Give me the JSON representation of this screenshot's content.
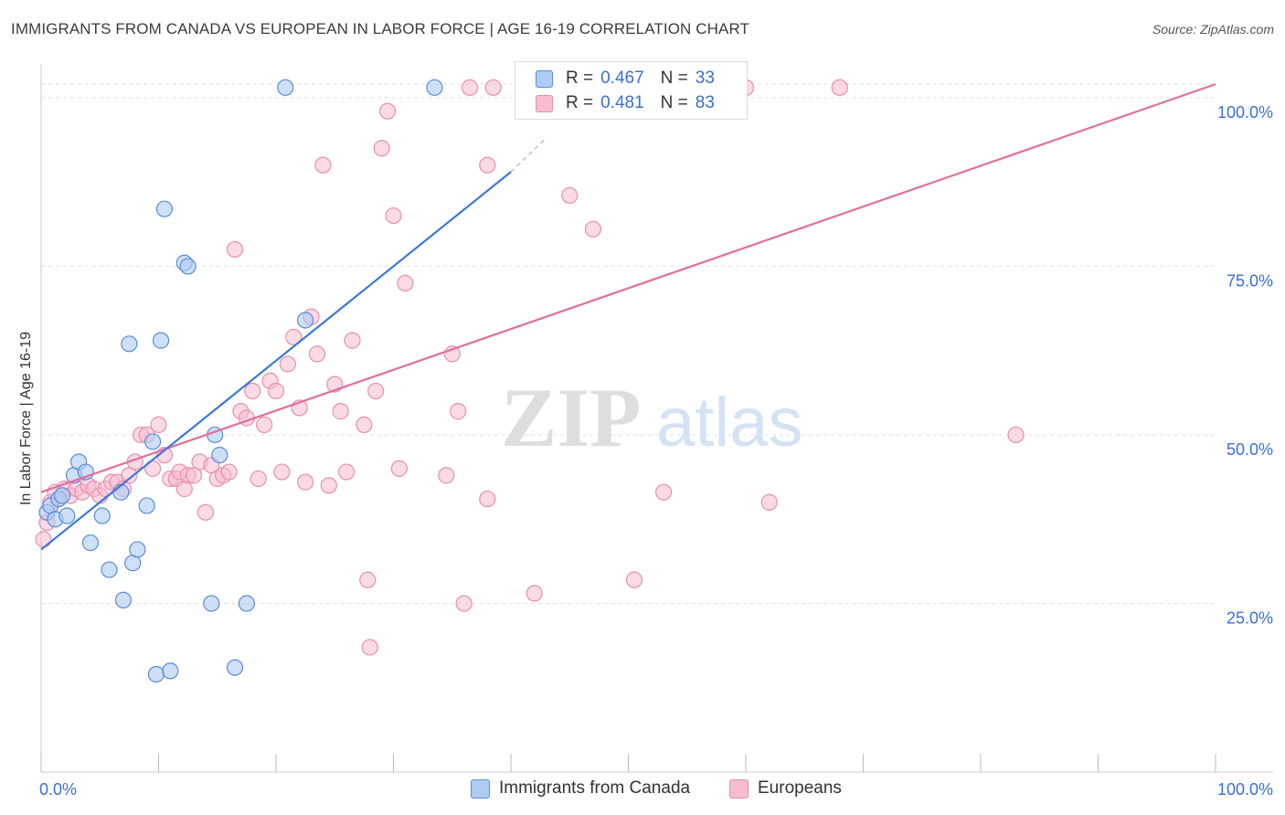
{
  "title": "IMMIGRANTS FROM CANADA VS EUROPEAN IN LABOR FORCE | AGE 16-19 CORRELATION CHART",
  "source": "Source: ZipAtlas.com",
  "watermark": {
    "zip": "ZIP",
    "atlas": "atlas"
  },
  "legend": {
    "rows": [
      {
        "r_label": "R =",
        "r_value": "0.467",
        "n_label": "N =",
        "n_value": "33"
      },
      {
        "r_label": "R =",
        "r_value": "0.481",
        "n_label": "N =",
        "n_value": "83"
      }
    ]
  },
  "chart_data": {
    "type": "scatter",
    "title": "IMMIGRANTS FROM CANADA VS EUROPEAN IN LABOR FORCE | AGE 16-19 CORRELATION CHART",
    "xlabel": "",
    "ylabel": "In Labor Force | Age 16-19",
    "xlim": [
      0,
      100
    ],
    "ylim": [
      0,
      105
    ],
    "x_tick_labels": [
      "0.0%",
      "100.0%"
    ],
    "y_ticks": [
      25,
      50,
      75,
      100
    ],
    "y_tick_labels": [
      "25.0%",
      "50.0%",
      "75.0%",
      "100.0%"
    ],
    "grid": true,
    "colors": {
      "canada_fill": "#aecbf3",
      "canada_stroke": "#5b8dd6",
      "canada_line": "#3b78d8",
      "european_fill": "#f6bcd0",
      "european_stroke": "#e88fad",
      "european_line": "#e0709a",
      "axis_label": "#3a6fd8",
      "grid": "#e0e0e0"
    },
    "series": [
      {
        "name": "Immigrants from Canada",
        "r": 0.467,
        "n": 33,
        "trend": {
          "x": [
            0,
            40
          ],
          "y": [
            33.0,
            89.0
          ],
          "dashed_to": [
            43,
            94.0
          ]
        },
        "points": [
          [
            0.5,
            38.5
          ],
          [
            0.8,
            39.5
          ],
          [
            1.2,
            37.5
          ],
          [
            1.5,
            40.5
          ],
          [
            1.8,
            41.0
          ],
          [
            2.2,
            38.0
          ],
          [
            2.8,
            44.0
          ],
          [
            3.2,
            46.0
          ],
          [
            3.8,
            44.5
          ],
          [
            4.2,
            34.0
          ],
          [
            5.2,
            38.0
          ],
          [
            5.8,
            30.0
          ],
          [
            6.8,
            41.5
          ],
          [
            7.0,
            25.5
          ],
          [
            7.5,
            63.5
          ],
          [
            7.8,
            31.0
          ],
          [
            8.2,
            33.0
          ],
          [
            9.0,
            39.5
          ],
          [
            9.5,
            49.0
          ],
          [
            9.8,
            14.5
          ],
          [
            10.2,
            64.0
          ],
          [
            10.5,
            83.5
          ],
          [
            11.0,
            15.0
          ],
          [
            12.2,
            75.5
          ],
          [
            12.5,
            75.0
          ],
          [
            14.5,
            25.0
          ],
          [
            14.8,
            50.0
          ],
          [
            15.2,
            47.0
          ],
          [
            16.5,
            15.5
          ],
          [
            17.5,
            25.0
          ],
          [
            20.8,
            101.5
          ],
          [
            22.5,
            67.0
          ],
          [
            33.5,
            101.5
          ]
        ]
      },
      {
        "name": "Europeans",
        "r": 0.481,
        "n": 83,
        "trend": {
          "x": [
            0,
            100
          ],
          "y": [
            41.5,
            102.0
          ]
        },
        "points": [
          [
            0.2,
            34.5
          ],
          [
            0.5,
            37.0
          ],
          [
            0.8,
            40.0
          ],
          [
            1.2,
            41.5
          ],
          [
            1.5,
            40.5
          ],
          [
            2.0,
            42.0
          ],
          [
            2.5,
            41.0
          ],
          [
            3.0,
            42.0
          ],
          [
            3.5,
            41.5
          ],
          [
            4.0,
            42.5
          ],
          [
            4.5,
            42.0
          ],
          [
            5.0,
            41.0
          ],
          [
            5.5,
            42.0
          ],
          [
            6.0,
            43.0
          ],
          [
            6.5,
            43.0
          ],
          [
            7.0,
            42.0
          ],
          [
            7.5,
            44.0
          ],
          [
            8.0,
            46.0
          ],
          [
            8.5,
            50.0
          ],
          [
            9.0,
            50.0
          ],
          [
            9.5,
            45.0
          ],
          [
            10.0,
            51.5
          ],
          [
            10.5,
            47.0
          ],
          [
            11.0,
            43.5
          ],
          [
            11.5,
            43.5
          ],
          [
            11.8,
            44.5
          ],
          [
            12.2,
            42.0
          ],
          [
            12.5,
            44.0
          ],
          [
            13.0,
            44.0
          ],
          [
            13.5,
            46.0
          ],
          [
            14.0,
            38.5
          ],
          [
            14.5,
            45.5
          ],
          [
            15.0,
            43.5
          ],
          [
            15.5,
            44.0
          ],
          [
            16.0,
            44.5
          ],
          [
            16.5,
            77.5
          ],
          [
            17.0,
            53.5
          ],
          [
            17.5,
            52.5
          ],
          [
            18.0,
            56.5
          ],
          [
            18.5,
            43.5
          ],
          [
            19.0,
            51.5
          ],
          [
            19.5,
            58.0
          ],
          [
            20.0,
            56.5
          ],
          [
            20.5,
            44.5
          ],
          [
            21.0,
            60.5
          ],
          [
            21.5,
            64.5
          ],
          [
            22.0,
            54.0
          ],
          [
            22.5,
            43.0
          ],
          [
            23.0,
            67.5
          ],
          [
            23.5,
            62.0
          ],
          [
            24.0,
            90.0
          ],
          [
            24.5,
            42.5
          ],
          [
            25.0,
            57.5
          ],
          [
            25.5,
            53.5
          ],
          [
            26.0,
            44.5
          ],
          [
            26.5,
            64.0
          ],
          [
            27.5,
            51.5
          ],
          [
            27.8,
            28.5
          ],
          [
            28.5,
            56.5
          ],
          [
            28.0,
            18.5
          ],
          [
            29.0,
            92.5
          ],
          [
            29.5,
            98.0
          ],
          [
            30.0,
            82.5
          ],
          [
            30.5,
            45.0
          ],
          [
            31.0,
            72.5
          ],
          [
            34.5,
            44.0
          ],
          [
            35.0,
            62.0
          ],
          [
            35.5,
            53.5
          ],
          [
            36.0,
            25.0
          ],
          [
            36.5,
            101.5
          ],
          [
            38.0,
            90.0
          ],
          [
            38.5,
            101.5
          ],
          [
            38.0,
            40.5
          ],
          [
            42.0,
            26.5
          ],
          [
            43.0,
            101.5
          ],
          [
            45.0,
            85.5
          ],
          [
            47.0,
            80.5
          ],
          [
            50.5,
            28.5
          ],
          [
            53.0,
            41.5
          ],
          [
            60.0,
            101.5
          ],
          [
            62.0,
            40.0
          ],
          [
            68.0,
            101.5
          ],
          [
            83.0,
            50.0
          ]
        ]
      }
    ]
  },
  "bottom_legend": [
    {
      "label": "Immigrants from Canada"
    },
    {
      "label": "Europeans"
    }
  ]
}
